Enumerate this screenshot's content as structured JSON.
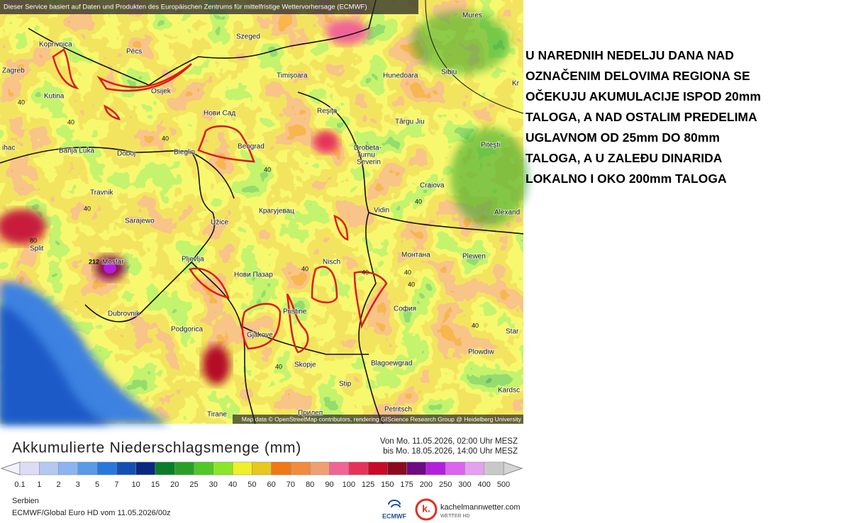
{
  "header": "Dieser Service basiert auf Daten und Produkten des Europäischen Zentrums für mittelfristige Wettervorhersage (ECMWF)",
  "attribution": "Map data © OpenStreetMap contributors, rendering GIScience Research Group @ Heidelberg University",
  "annotation": [
    "U NAREDNIH NEDELJU DANA NAD",
    "OZNAČENIM DELOVIMA REGIONA SE",
    "OČEKUJU AKUMULACIJE ISPOD 20mm",
    "TALOGA, A NAD OSTALIM PREDELIMA",
    "UGLAVNOM OD 25mm DO 80mm",
    "TALOGA, A U ZALEĐU DINARIDA",
    "LOKALNO I OKO 200mm TALOGA"
  ],
  "map": {
    "cities": [
      "Mures",
      "Koprivnica",
      "Pécs",
      "Szeged",
      "Zagreb",
      "Osijek",
      "Timişoara",
      "Hunedoara",
      "Sibiu",
      "Kr",
      "Kutina",
      "Нови Сад",
      "Reşiţa",
      "Târgu Jiu",
      "ihac",
      "Banja Luka",
      "Doboj",
      "Bieglin",
      "Beograd",
      "Drobeta-",
      "Turnu",
      "Severin",
      "Piteşti",
      "Craiova",
      "Travnik",
      "Крагујевац",
      "Vidin",
      "Alexand",
      "Sarajewo",
      "Užice",
      "Split",
      "Mostar",
      "Pljevlja",
      "Монтана",
      "Plewen",
      "Нови Пазар",
      "Nisch",
      "Dubrovnik",
      "Pristine",
      "София",
      "Podgorica",
      "Gjakove",
      "Star",
      "Plowdiw",
      "Skopje",
      "Blagoewgrad",
      "Stip",
      "Kardsc",
      "Petritsch",
      "Tirane",
      "Прилеп"
    ],
    "contour_labels": [
      "40",
      "40",
      "40",
      "40",
      "40",
      "40",
      "40",
      "40",
      "40",
      "40",
      "40",
      "40",
      "80",
      "212"
    ]
  },
  "legend": {
    "title": "Akkumulierte Niederschlagsmenge (mm)",
    "period": [
      "Von Mo. 11.05.2026, 02:00 Uhr MESZ",
      "bis Mo. 18.05.2026, 14:00 Uhr MESZ"
    ],
    "ticks": [
      0.1,
      1,
      2,
      3,
      5,
      7,
      10,
      15,
      20,
      25,
      30,
      40,
      50,
      60,
      70,
      80,
      90,
      100,
      125,
      150,
      175,
      200,
      250,
      300,
      400,
      500
    ],
    "colors": [
      "#dcdcf5",
      "#b4c8f0",
      "#8cb4f0",
      "#5a9ae6",
      "#2878dc",
      "#1450b4",
      "#0a2882",
      "#0a7d28",
      "#28a028",
      "#50c828",
      "#8ce628",
      "#f0f028",
      "#e6c81e",
      "#f07814",
      "#f08c3c",
      "#f0a070",
      "#f06496",
      "#e6325a",
      "#c80a28",
      "#8c0a1e",
      "#6e0a82",
      "#b41edc",
      "#dc64f0",
      "#e6a0f0",
      "#c8c8c8"
    ]
  },
  "footer": {
    "region": "Serbien",
    "model": "ECMWF/Global Euro HD vom  11.05.2026/00z"
  },
  "logos": {
    "ecmwf": "ECMWF",
    "k": "k.",
    "site": "kachelmannwetter.com",
    "sub": "WETTER HD"
  }
}
